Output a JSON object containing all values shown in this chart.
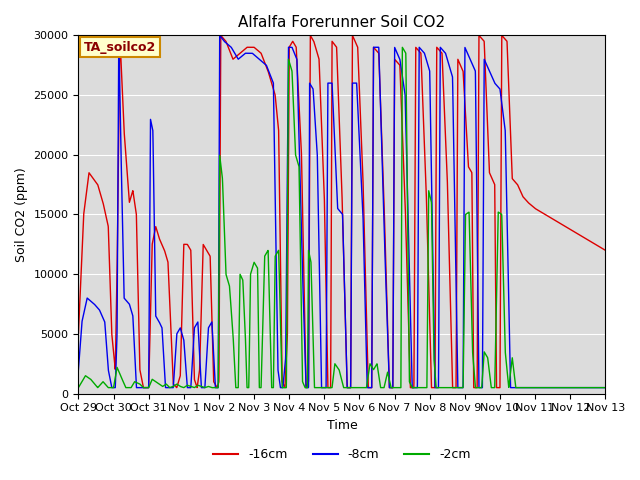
{
  "title": "Alfalfa Forerunner Soil CO2",
  "ylabel": "Soil CO2 (ppm)",
  "xlabel": "Time",
  "annotation_text": "TA_soilco2",
  "ylim": [
    0,
    30000
  ],
  "yticks": [
    0,
    5000,
    10000,
    15000,
    20000,
    25000,
    30000
  ],
  "colors": {
    "red": "#dd0000",
    "blue": "#0000ee",
    "green": "#00aa00"
  },
  "legend_labels": [
    "-16cm",
    "-8cm",
    "-2cm"
  ],
  "bg_color": "#dcdcdc",
  "tick_labels": [
    "Oct 29",
    "Oct 30",
    "Oct 31",
    "Nov 1",
    "Nov 2",
    "Nov 3",
    "Nov 4",
    "Nov 5",
    "Nov 6",
    "Nov 7",
    "Nov 8",
    "Nov 9",
    "Nov 10",
    "Nov 11",
    "Nov 12",
    "Nov 13"
  ],
  "num_days": 15
}
